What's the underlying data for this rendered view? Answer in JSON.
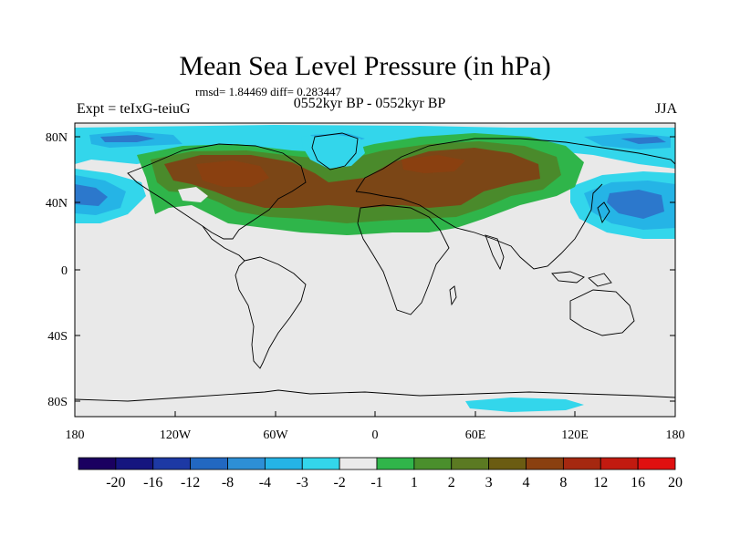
{
  "title": "Mean Sea Level Pressure (in hPa)",
  "stats": "rmsd= 1.84469 diff= 0.283447",
  "left_label": "Expt = teIxG-teiuG",
  "center_label": "0552kyr BP - 0552kyr BP",
  "right_label": "JJA",
  "axes": {
    "y_ticks": [
      "80N",
      "40N",
      "0",
      "40S",
      "80S"
    ],
    "x_ticks": [
      "180",
      "120W",
      "60W",
      "0",
      "60E",
      "120E",
      "180"
    ]
  },
  "colorbar": {
    "labels": [
      "-20",
      "-16",
      "-12",
      "-8",
      "-4",
      "-3",
      "-2",
      "-1",
      "1",
      "2",
      "3",
      "4",
      "8",
      "12",
      "16",
      "20"
    ],
    "colors": [
      "#1a0060",
      "#15157f",
      "#1d39a4",
      "#2268c1",
      "#2d8fd6",
      "#25b4e6",
      "#33d6eb",
      "#eaeaea",
      "#30b54a",
      "#4a8f2c",
      "#5b7a22",
      "#6b5c12",
      "#8a4010",
      "#a52810",
      "#c21a10",
      "#e01010"
    ]
  },
  "legend_colors": {
    "land_bg": "#e9e9e9",
    "positive_light": "#2fb54a",
    "positive_mid": "#4a8a2b",
    "positive_strong": "#7b4616",
    "negative_light": "#30d6eb",
    "negative_mid": "#25b4e6",
    "negative_strong": "#2c78cc"
  }
}
